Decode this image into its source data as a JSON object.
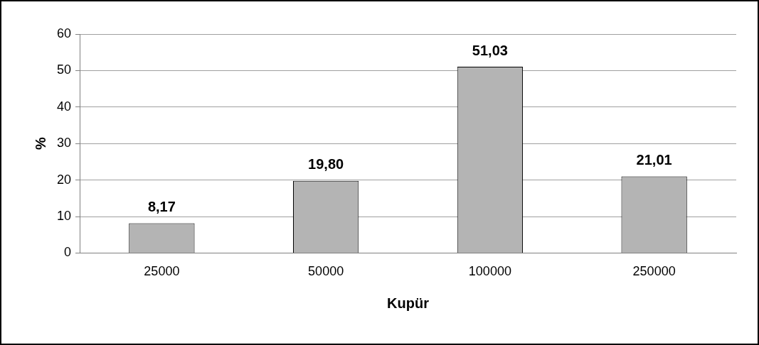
{
  "chart_data": {
    "type": "bar",
    "xlabel": "Kupür",
    "ylabel": "%",
    "categories": [
      "25000",
      "50000",
      "100000",
      "250000"
    ],
    "values": [
      8.17,
      19.8,
      51.03,
      21.01
    ],
    "value_labels": [
      "8,17",
      "19,80",
      "51,03",
      "21,01"
    ],
    "color": "#b4b4b4",
    "ylim": [
      0,
      60
    ],
    "yticks": [
      0,
      10,
      20,
      30,
      40,
      50,
      60
    ],
    "grid": "y",
    "legend": false
  }
}
